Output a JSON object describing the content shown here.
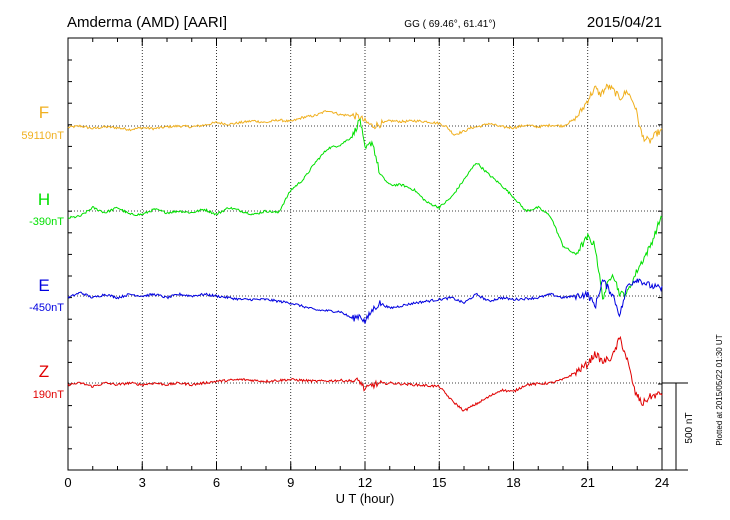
{
  "header": {
    "station": "Amderma (AMD)  [AARI]",
    "coords": "GG ( 69.46°,  61.41°)",
    "date": "2015/04/21"
  },
  "plot_note": "Plotted at 2015/05/22 01:30 UT",
  "scale_bar": {
    "label": "500 nT",
    "value": 500
  },
  "chart_data": {
    "type": "line",
    "xlabel": "U T (hour)",
    "xlim": [
      0,
      24
    ],
    "x_ticks": [
      0,
      3,
      6,
      9,
      12,
      15,
      18,
      21,
      24
    ],
    "grid": true,
    "series": [
      {
        "name": "F",
        "baseline": "59110nT",
        "color": "#f0b020",
        "points": [
          [
            0,
            -8
          ],
          [
            0.5,
            0
          ],
          [
            1,
            -15
          ],
          [
            1.5,
            -5
          ],
          [
            2,
            -10
          ],
          [
            2.5,
            -20
          ],
          [
            3,
            -10
          ],
          [
            3.5,
            -15
          ],
          [
            4,
            -5
          ],
          [
            4.5,
            0
          ],
          [
            5,
            -5
          ],
          [
            5.5,
            5
          ],
          [
            6,
            20
          ],
          [
            6.5,
            10
          ],
          [
            7,
            20
          ],
          [
            7.5,
            30
          ],
          [
            8,
            20
          ],
          [
            8.5,
            35
          ],
          [
            9,
            25
          ],
          [
            9.5,
            50
          ],
          [
            10,
            60
          ],
          [
            10.5,
            90
          ],
          [
            11,
            65
          ],
          [
            11.5,
            60
          ],
          [
            11.8,
            50
          ],
          [
            12,
            25
          ],
          [
            12.3,
            0
          ],
          [
            12.6,
            10
          ],
          [
            13,
            30
          ],
          [
            13.5,
            25
          ],
          [
            14,
            30
          ],
          [
            14.5,
            25
          ],
          [
            15,
            15
          ],
          [
            15.3,
            -5
          ],
          [
            15.6,
            -50
          ],
          [
            16,
            -30
          ],
          [
            16.3,
            -10
          ],
          [
            16.7,
            0
          ],
          [
            17,
            15
          ],
          [
            17.5,
            -5
          ],
          [
            18,
            -10
          ],
          [
            18.5,
            5
          ],
          [
            19,
            -5
          ],
          [
            19.5,
            5
          ],
          [
            20,
            0
          ],
          [
            20.5,
            40
          ],
          [
            20.8,
            100
          ],
          [
            21,
            150
          ],
          [
            21.3,
            220
          ],
          [
            21.5,
            180
          ],
          [
            21.8,
            230
          ],
          [
            22,
            210
          ],
          [
            22.3,
            160
          ],
          [
            22.6,
            200
          ],
          [
            22.9,
            120
          ],
          [
            23.2,
            -60
          ],
          [
            23.5,
            -90
          ],
          [
            23.8,
            -40
          ],
          [
            24,
            -30
          ]
        ]
      },
      {
        "name": "H",
        "baseline": "-390nT",
        "color": "#00e000",
        "points": [
          [
            0,
            -40
          ],
          [
            0.5,
            -30
          ],
          [
            1,
            20
          ],
          [
            1.5,
            -10
          ],
          [
            2,
            20
          ],
          [
            2.5,
            -20
          ],
          [
            3,
            -20
          ],
          [
            3.5,
            10
          ],
          [
            4,
            -10
          ],
          [
            4.5,
            0
          ],
          [
            5,
            -10
          ],
          [
            5.5,
            10
          ],
          [
            6,
            -20
          ],
          [
            6.5,
            20
          ],
          [
            7,
            0
          ],
          [
            7.5,
            -20
          ],
          [
            8,
            0
          ],
          [
            8.5,
            -10
          ],
          [
            9,
            120
          ],
          [
            9.5,
            180
          ],
          [
            10,
            280
          ],
          [
            10.5,
            360
          ],
          [
            11,
            380
          ],
          [
            11.5,
            430
          ],
          [
            11.8,
            530
          ],
          [
            12,
            350
          ],
          [
            12.3,
            400
          ],
          [
            12.6,
            210
          ],
          [
            13,
            150
          ],
          [
            13.5,
            150
          ],
          [
            14,
            120
          ],
          [
            14.5,
            50
          ],
          [
            15,
            20
          ],
          [
            15.5,
            80
          ],
          [
            16,
            180
          ],
          [
            16.5,
            280
          ],
          [
            17,
            210
          ],
          [
            17.5,
            150
          ],
          [
            18,
            80
          ],
          [
            18.5,
            0
          ],
          [
            19,
            20
          ],
          [
            19.5,
            -30
          ],
          [
            20,
            -200
          ],
          [
            20.5,
            -250
          ],
          [
            21,
            -150
          ],
          [
            21.3,
            -200
          ],
          [
            21.6,
            -500
          ],
          [
            22,
            -350
          ],
          [
            22.3,
            -480
          ],
          [
            22.6,
            -470
          ],
          [
            23,
            -340
          ],
          [
            23.5,
            -210
          ],
          [
            23.8,
            -100
          ],
          [
            24,
            -20
          ]
        ]
      },
      {
        "name": "E",
        "baseline": "-450nT",
        "color": "#0000e0",
        "points": [
          [
            0,
            -10
          ],
          [
            0.5,
            20
          ],
          [
            1,
            -10
          ],
          [
            1.5,
            10
          ],
          [
            2,
            -10
          ],
          [
            2.5,
            10
          ],
          [
            3,
            0
          ],
          [
            3.5,
            10
          ],
          [
            4,
            -10
          ],
          [
            4.5,
            10
          ],
          [
            5,
            0
          ],
          [
            5.5,
            10
          ],
          [
            6,
            0
          ],
          [
            7,
            -20
          ],
          [
            8,
            -20
          ],
          [
            9,
            -40
          ],
          [
            9.5,
            -60
          ],
          [
            10,
            -80
          ],
          [
            11,
            -90
          ],
          [
            11.5,
            -130
          ],
          [
            11.8,
            -110
          ],
          [
            12,
            -150
          ],
          [
            12.3,
            -80
          ],
          [
            12.6,
            -40
          ],
          [
            13,
            -70
          ],
          [
            14,
            -40
          ],
          [
            15,
            -20
          ],
          [
            15.5,
            -10
          ],
          [
            16,
            -40
          ],
          [
            16.5,
            10
          ],
          [
            17,
            -30
          ],
          [
            17.5,
            -10
          ],
          [
            18,
            -20
          ],
          [
            19,
            -10
          ],
          [
            19.5,
            10
          ],
          [
            20,
            -10
          ],
          [
            20.5,
            0
          ],
          [
            21,
            10
          ],
          [
            21.3,
            -60
          ],
          [
            21.6,
            90
          ],
          [
            22,
            10
          ],
          [
            22.3,
            -110
          ],
          [
            22.6,
            60
          ],
          [
            23,
            100
          ],
          [
            23.5,
            60
          ],
          [
            24,
            40
          ]
        ]
      },
      {
        "name": "Z",
        "baseline": "190nT",
        "color": "#e00000",
        "points": [
          [
            0,
            -10
          ],
          [
            0.5,
            0
          ],
          [
            1,
            -20
          ],
          [
            1.5,
            0
          ],
          [
            2,
            -10
          ],
          [
            2.5,
            0
          ],
          [
            3,
            -10
          ],
          [
            3.5,
            0
          ],
          [
            4,
            -10
          ],
          [
            4.5,
            0
          ],
          [
            5,
            -10
          ],
          [
            5.5,
            0
          ],
          [
            6,
            10
          ],
          [
            7,
            20
          ],
          [
            8,
            10
          ],
          [
            9,
            20
          ],
          [
            10,
            10
          ],
          [
            11,
            15
          ],
          [
            11.8,
            10
          ],
          [
            12,
            -40
          ],
          [
            12.3,
            -10
          ],
          [
            13,
            0
          ],
          [
            14,
            -10
          ],
          [
            14.5,
            -15
          ],
          [
            15,
            -20
          ],
          [
            15.5,
            -100
          ],
          [
            16,
            -160
          ],
          [
            16.5,
            -120
          ],
          [
            17,
            -80
          ],
          [
            17.5,
            -40
          ],
          [
            18,
            -50
          ],
          [
            18.5,
            -10
          ],
          [
            19,
            -5
          ],
          [
            19.5,
            0
          ],
          [
            20,
            20
          ],
          [
            20.5,
            60
          ],
          [
            21,
            110
          ],
          [
            21.3,
            170
          ],
          [
            21.6,
            120
          ],
          [
            22,
            150
          ],
          [
            22.3,
            260
          ],
          [
            22.6,
            130
          ],
          [
            22.9,
            -50
          ],
          [
            23.2,
            -120
          ],
          [
            23.5,
            -80
          ],
          [
            24,
            -60
          ]
        ]
      }
    ]
  }
}
